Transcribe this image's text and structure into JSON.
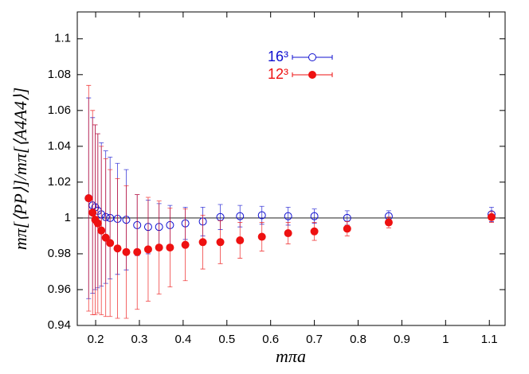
{
  "chart_data": {
    "type": "scatter",
    "x_label": "mπa",
    "y_label": "mπ[⟨PP⟩]/mπ[⟨A4A4⟩]",
    "xlim": [
      0.158,
      1.136
    ],
    "ylim": [
      0.94,
      1.115
    ],
    "xticks": [
      0.2,
      0.3,
      0.4,
      0.5,
      0.6,
      0.7,
      0.8,
      0.9,
      1,
      1.1
    ],
    "yticks": [
      0.94,
      0.96,
      0.98,
      1,
      1.02,
      1.04,
      1.06,
      1.08,
      1.1
    ],
    "reference_line": 1,
    "legend": "top-center",
    "series": [
      {
        "name": "16³",
        "color": "#1010d0",
        "marker": "open",
        "x": [
          0.184,
          0.193,
          0.199,
          0.205,
          0.213,
          0.223,
          0.233,
          0.25,
          0.27,
          0.295,
          0.32,
          0.345,
          0.37,
          0.405,
          0.445,
          0.485,
          0.53,
          0.58,
          0.64,
          0.7,
          0.775,
          0.87,
          1.105
        ],
        "values": [
          1.011,
          1.007,
          1.006,
          1.004,
          1.002,
          1.0005,
          1.0,
          0.9995,
          0.999,
          0.996,
          0.995,
          0.995,
          0.996,
          0.997,
          0.998,
          1.0005,
          1.001,
          1.0015,
          1.001,
          1.001,
          1.0,
          1.001,
          1.002
        ],
        "errors": [
          0.056,
          0.049,
          0.046,
          0.043,
          0.04,
          0.037,
          0.034,
          0.031,
          0.028,
          0.017,
          0.015,
          0.013,
          0.011,
          0.009,
          0.008,
          0.007,
          0.006,
          0.005,
          0.005,
          0.004,
          0.004,
          0.003,
          0.004
        ]
      },
      {
        "name": "12³",
        "color": "#ee1111",
        "marker": "filled",
        "x": [
          0.184,
          0.193,
          0.199,
          0.205,
          0.213,
          0.223,
          0.233,
          0.25,
          0.27,
          0.295,
          0.32,
          0.345,
          0.37,
          0.405,
          0.445,
          0.485,
          0.53,
          0.58,
          0.64,
          0.7,
          0.775,
          0.87,
          1.105
        ],
        "values": [
          1.011,
          1.003,
          0.999,
          0.997,
          0.993,
          0.989,
          0.986,
          0.983,
          0.981,
          0.981,
          0.9825,
          0.9835,
          0.9835,
          0.985,
          0.9865,
          0.9865,
          0.9875,
          0.9895,
          0.9915,
          0.9925,
          0.994,
          0.9975,
          1.0005
        ],
        "errors": [
          0.063,
          0.057,
          0.053,
          0.05,
          0.047,
          0.044,
          0.041,
          0.039,
          0.037,
          0.032,
          0.029,
          0.026,
          0.022,
          0.02,
          0.015,
          0.012,
          0.01,
          0.008,
          0.006,
          0.005,
          0.004,
          0.003,
          0.003
        ]
      }
    ]
  }
}
